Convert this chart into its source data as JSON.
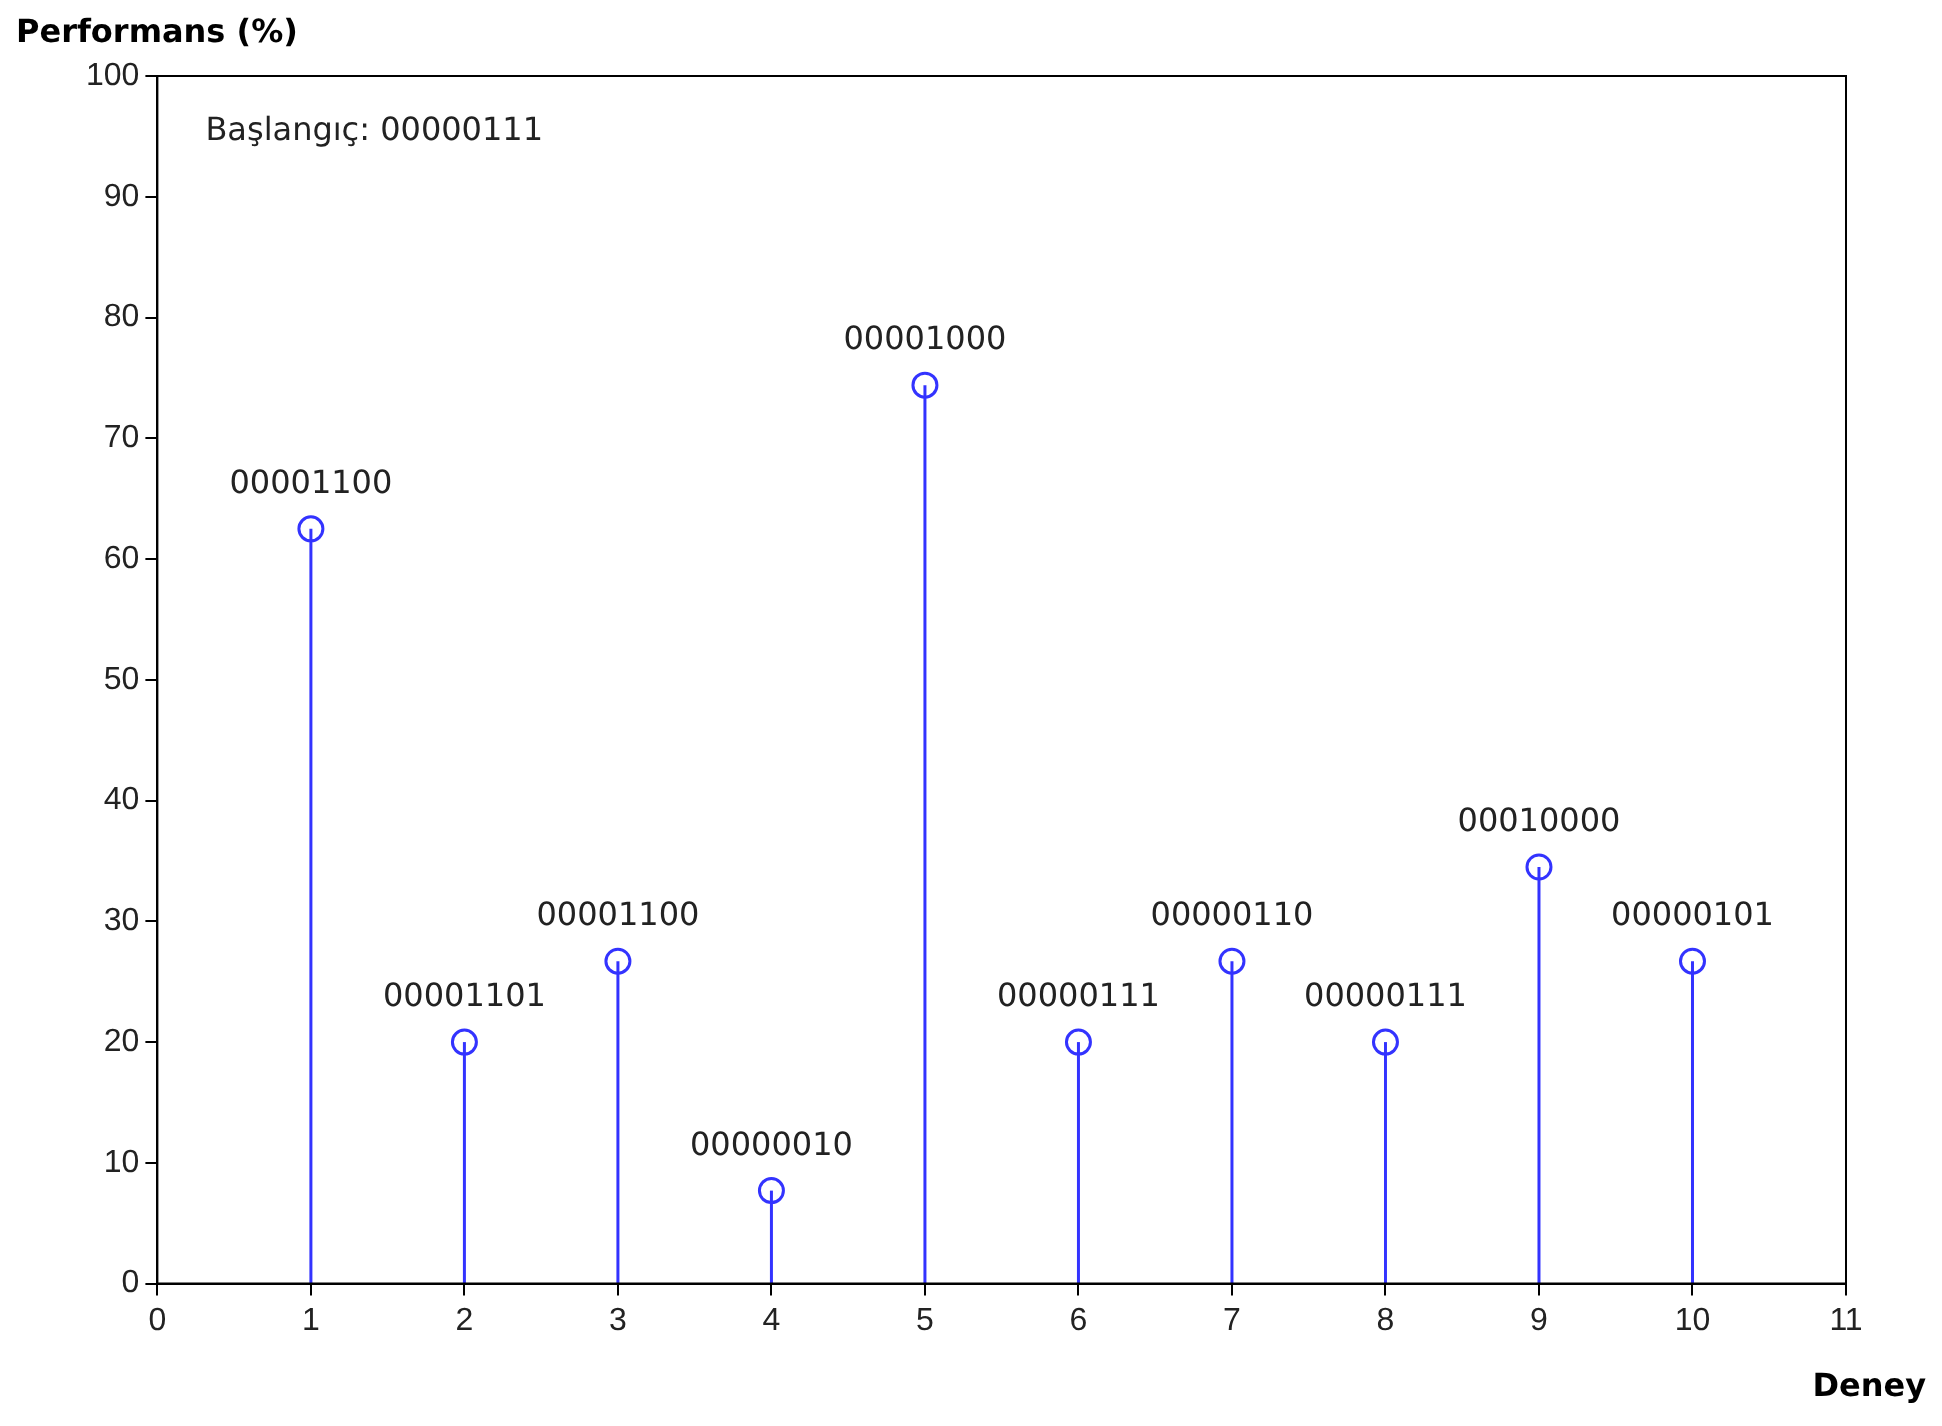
{
  "chart_data": {
    "type": "lollipop",
    "xlabel": "Deney",
    "ylabel": "Performans (%)",
    "x": [
      1,
      2,
      3,
      4,
      5,
      6,
      7,
      8,
      9,
      10
    ],
    "values": [
      62.5,
      20,
      26.7,
      7.7,
      74.4,
      20,
      26.7,
      20,
      34.5,
      26.7
    ],
    "color": "#3333ff",
    "marker": "circle",
    "legend": false,
    "grid": false,
    "xlim": [
      0,
      11
    ],
    "xticks": [
      0,
      1,
      2,
      3,
      4,
      5,
      6,
      7,
      8,
      9,
      10,
      11
    ],
    "ylim": [
      0,
      100
    ],
    "yticks": [
      0,
      10,
      20,
      30,
      40,
      50,
      60,
      70,
      80,
      90,
      100
    ],
    "annotations": [
      "Başlangıç: 00000111",
      {
        "text": "00001100",
        "x": 1,
        "y": 62.5
      },
      {
        "text": "00001101",
        "x": 2,
        "y": 20
      },
      {
        "text": "00001100",
        "x": 3,
        "y": 26.7
      },
      {
        "text": "00000010",
        "x": 4,
        "y": 7.7
      },
      {
        "text": "00001000",
        "x": 5,
        "y": 74.4
      },
      {
        "text": "00000111",
        "x": 6,
        "y": 20
      },
      {
        "text": "00000110",
        "x": 7,
        "y": 26.7
      },
      {
        "text": "00000111",
        "x": 8,
        "y": 20
      },
      {
        "text": "00010000",
        "x": 9,
        "y": 34.5
      },
      {
        "text": "00000101",
        "x": 10,
        "y": 26.7
      }
    ]
  }
}
